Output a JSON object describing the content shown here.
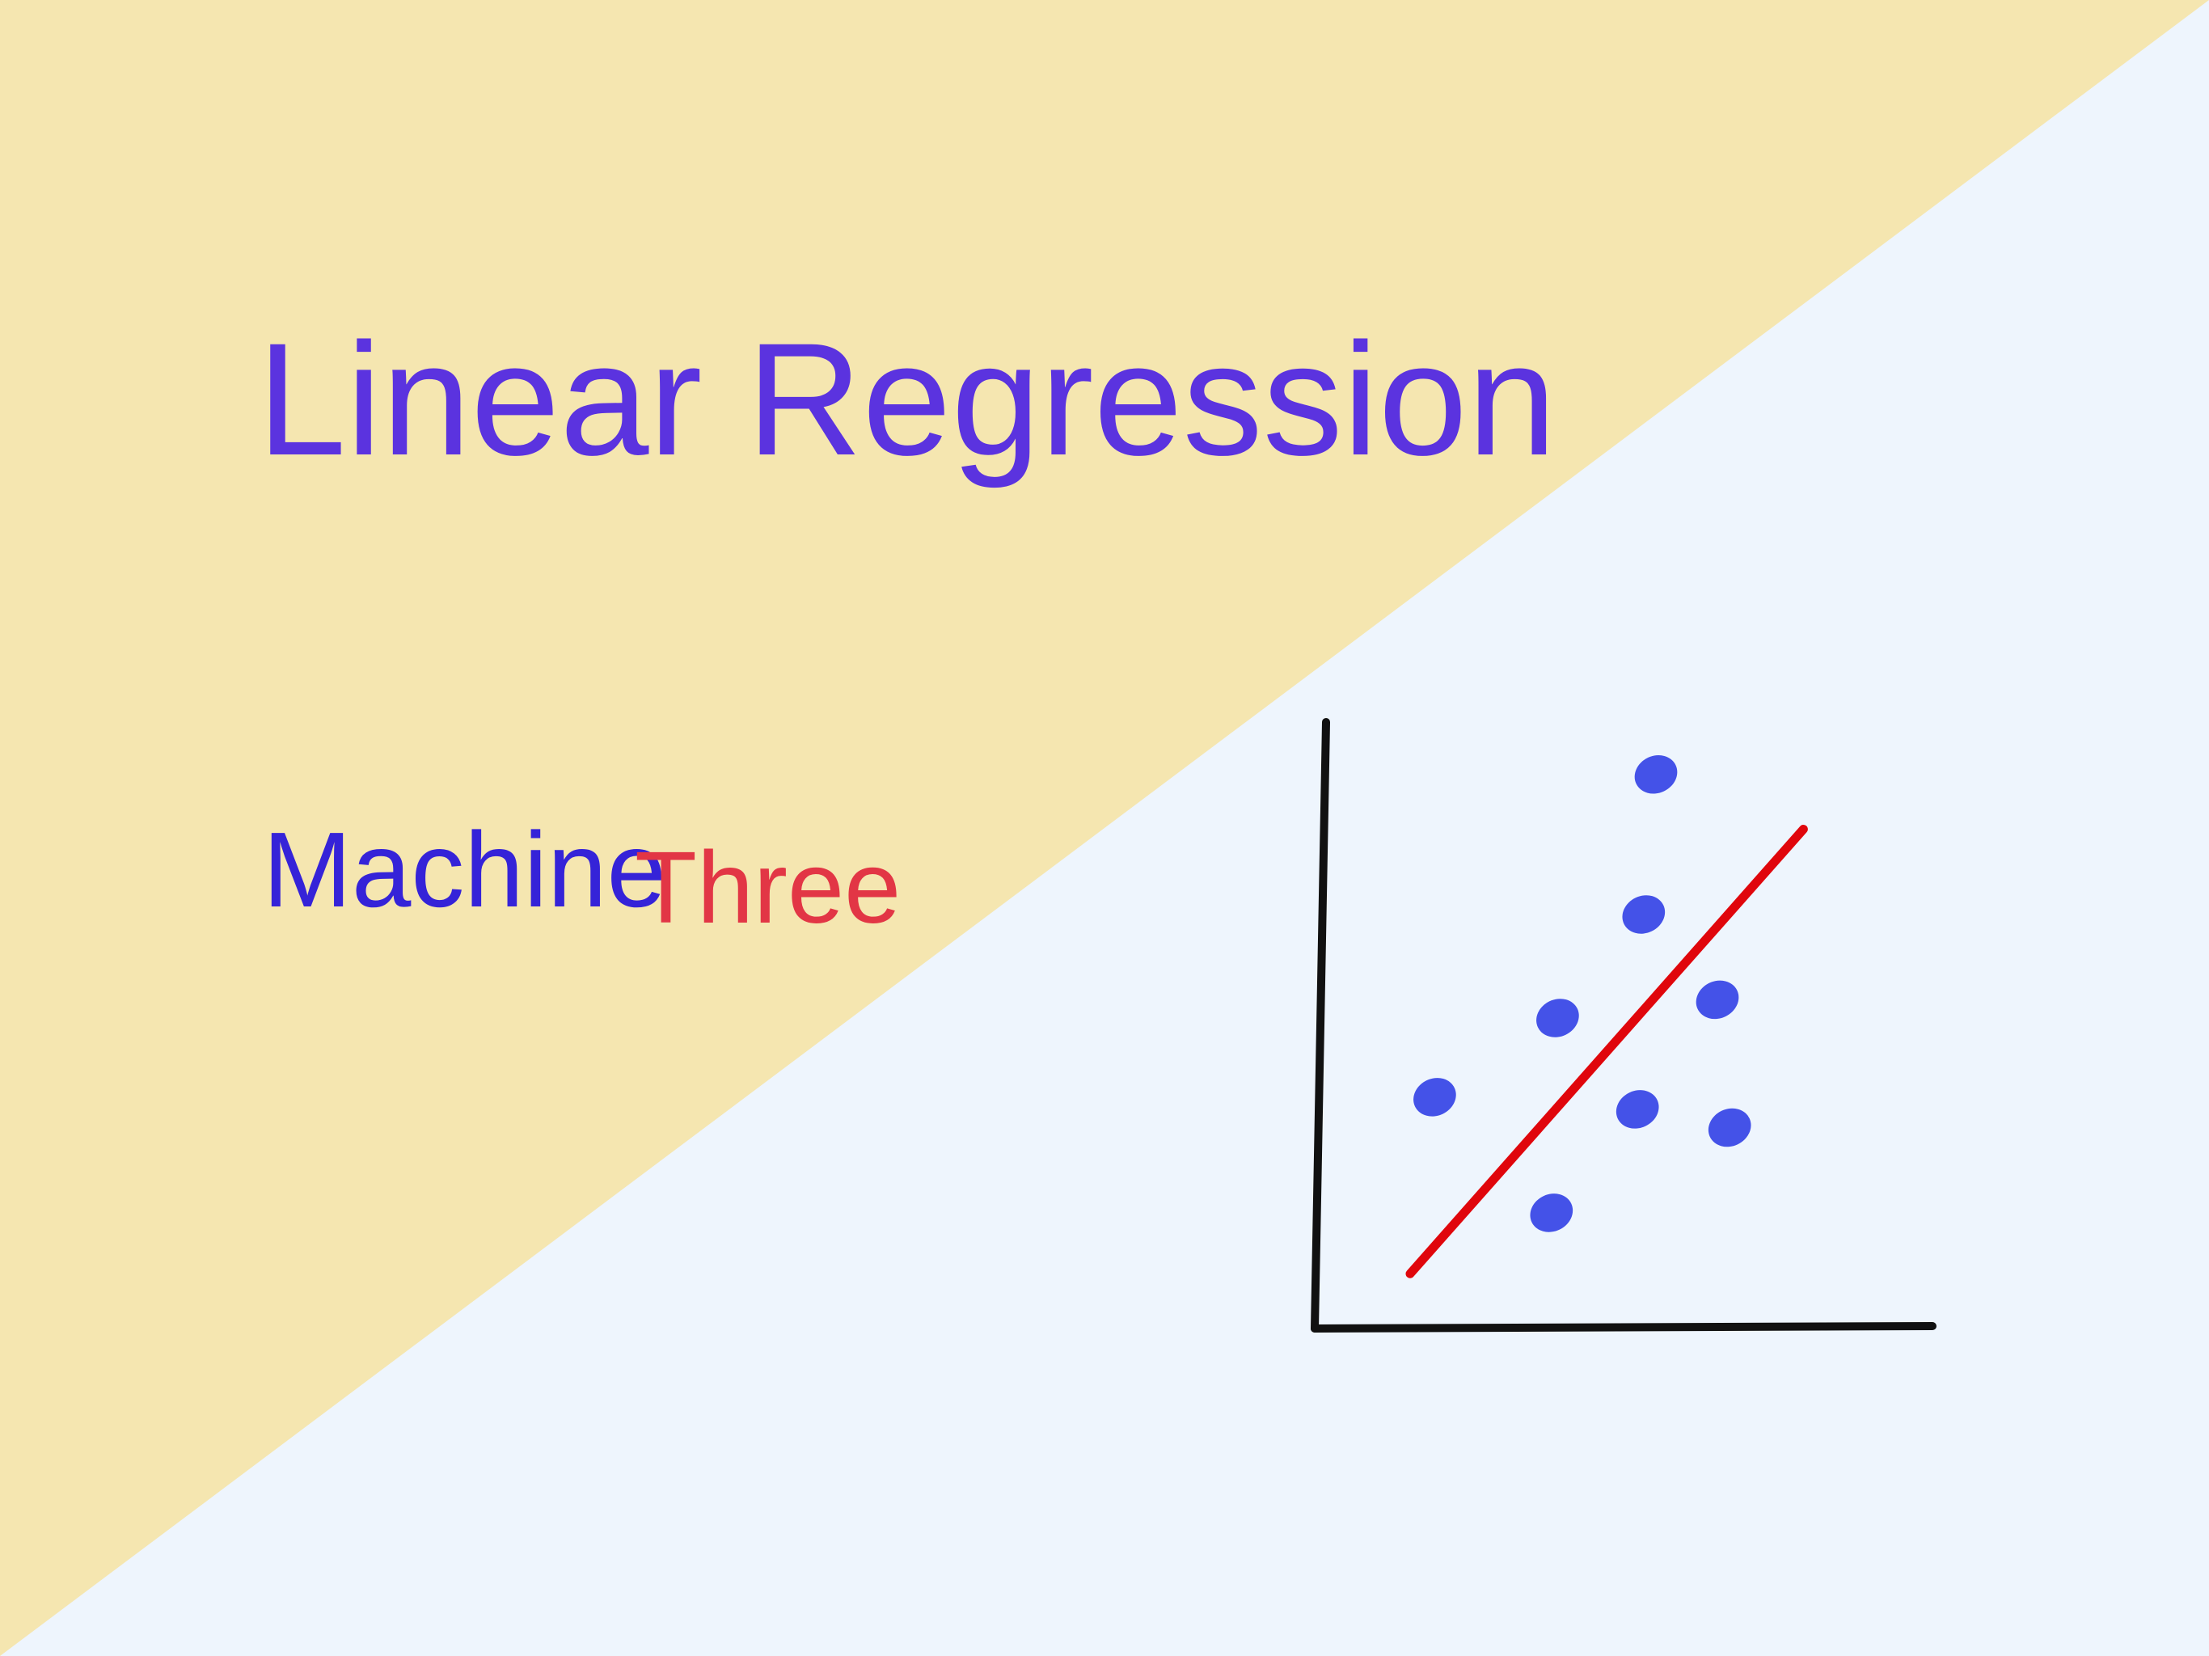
{
  "slide": {
    "title": "Linear Regression",
    "subtitle": "Machine",
    "subtitle_superscript": "Three"
  },
  "colors": {
    "background_top_left": "#f5e6b0",
    "background_bottom_right": "#eef5fd",
    "title": "#5b33df",
    "subtitle": "#3523d8",
    "superscript": "#e23645",
    "axes": "#111111",
    "points": "#4452e8",
    "regression_line": "#e0060c"
  },
  "chart_data": {
    "type": "scatter",
    "xlim": [
      0,
      10
    ],
    "ylim": [
      0,
      10
    ],
    "grid": false,
    "points": [
      {
        "x": 1.9,
        "y": 3.8
      },
      {
        "x": 3.8,
        "y": 1.9
      },
      {
        "x": 3.9,
        "y": 5.1
      },
      {
        "x": 5.2,
        "y": 3.6
      },
      {
        "x": 5.3,
        "y": 6.8
      },
      {
        "x": 5.5,
        "y": 9.1
      },
      {
        "x": 6.5,
        "y": 5.4
      },
      {
        "x": 6.7,
        "y": 3.3
      }
    ],
    "regression_line": {
      "x": [
        1.5,
        7.9
      ],
      "y": [
        0.9,
        8.2
      ]
    }
  }
}
